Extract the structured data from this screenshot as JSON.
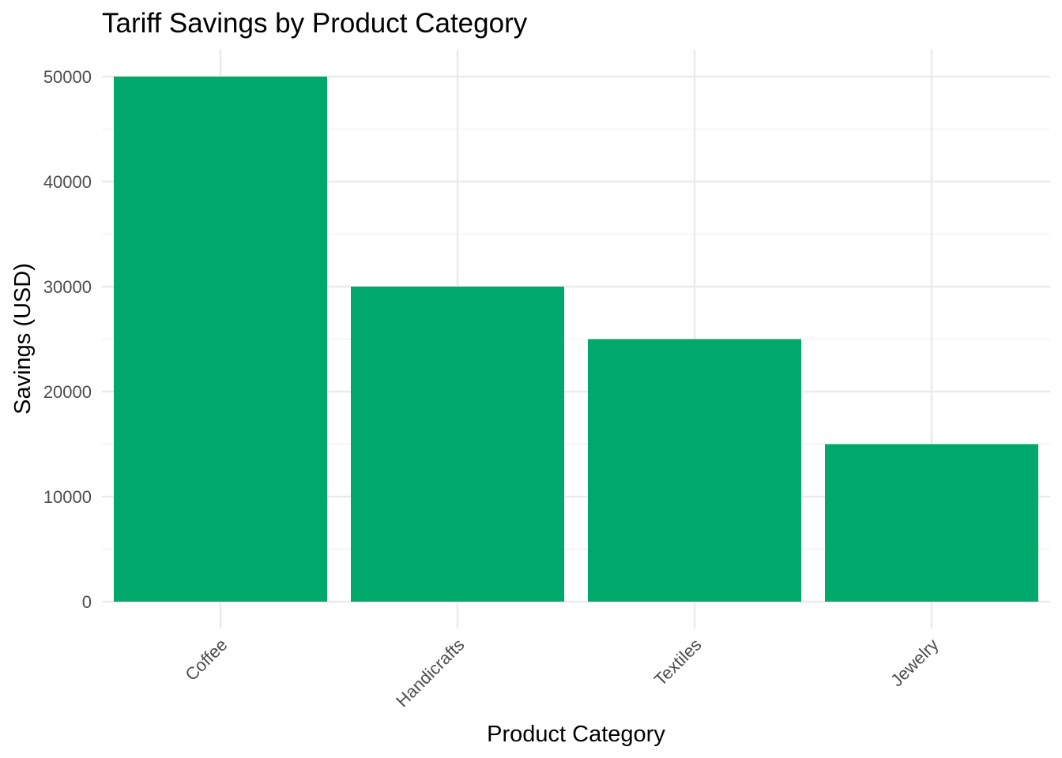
{
  "chart_data": {
    "type": "bar",
    "title": "Tariff Savings by Product Category",
    "xlabel": "Product Category",
    "ylabel": "Savings (USD)",
    "categories": [
      "Coffee",
      "Handicrafts",
      "Textiles",
      "Jewelry"
    ],
    "values": [
      50000,
      30000,
      25000,
      15000
    ],
    "ylim": [
      0,
      52500
    ],
    "yticks": [
      0,
      10000,
      20000,
      30000,
      40000,
      50000
    ],
    "ytick_labels": [
      "0",
      "10000",
      "20000",
      "30000",
      "40000",
      "50000"
    ],
    "minor_yticks": [
      5000,
      15000,
      25000,
      35000,
      45000
    ],
    "grid": true,
    "legend": "none",
    "bar_color": "#00A86B",
    "grid_color": "#EBEBEB",
    "background": "#FFFFFF"
  }
}
